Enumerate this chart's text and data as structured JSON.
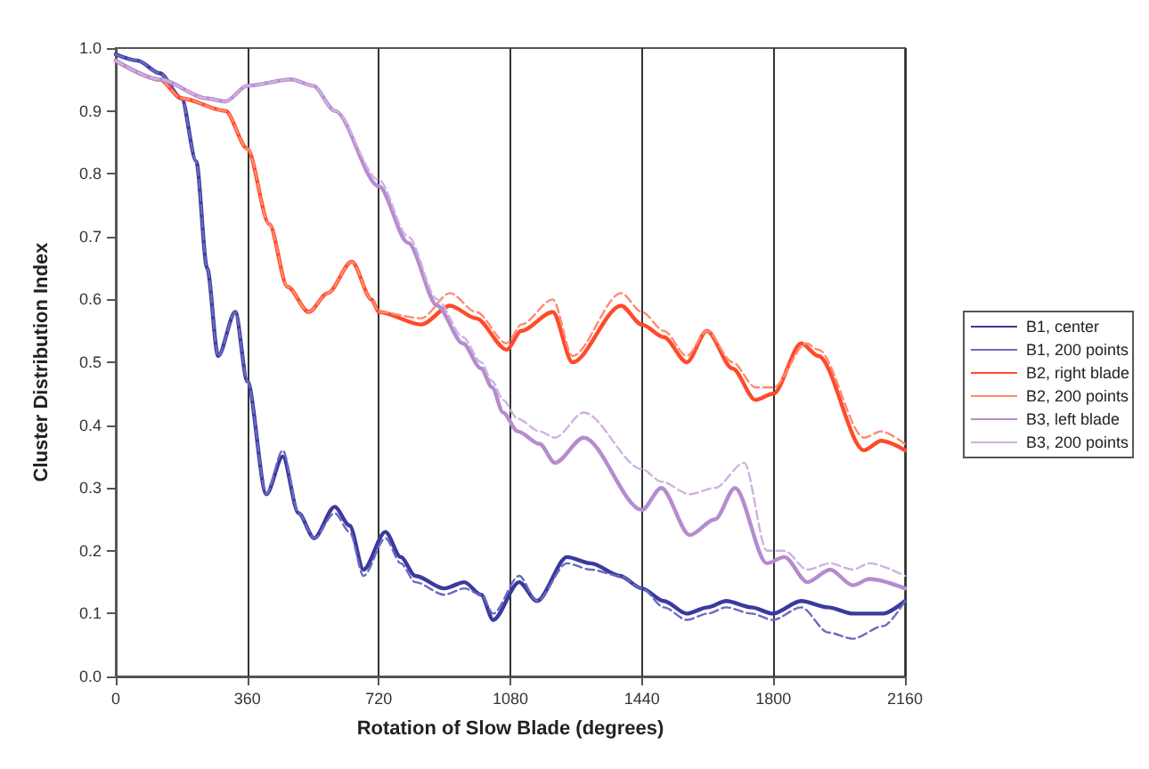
{
  "chart_data": {
    "type": "line",
    "xlabel": "Rotation of Slow Blade (degrees)",
    "ylabel": "Cluster Distribution Index",
    "xlim": [
      0,
      2160
    ],
    "xticks": [
      0,
      360,
      720,
      1080,
      1440,
      1800,
      2160
    ],
    "ylim": [
      0,
      1
    ],
    "yticks": [
      {
        "value": 0,
        "label": "0.0"
      },
      {
        "value": 0.1,
        "label": "0.1"
      },
      {
        "value": 0.2,
        "label": "0.2"
      },
      {
        "value": 0.3,
        "label": "0.3"
      },
      {
        "value": 0.4,
        "label": "0.4"
      },
      {
        "value": 0.5,
        "label": "0.5"
      },
      {
        "value": 0.6,
        "label": "0.6"
      },
      {
        "value": 0.7,
        "label": "0.7"
      },
      {
        "value": 0.8,
        "label": "0.8"
      },
      {
        "value": 0.9,
        "label": "0.9"
      },
      {
        "value": 1,
        "label": "1.0"
      }
    ],
    "grid": "x",
    "legend": "right",
    "marker": "none",
    "series": [
      {
        "name": "B1, center",
        "color": "#3a3a9e",
        "line_style": "solid",
        "x": [
          0,
          60,
          120,
          180,
          220,
          250,
          280,
          327,
          360,
          412,
          457,
          500,
          543,
          599,
          640,
          678,
          738,
          780,
          820,
          899,
          954,
          1000,
          1033,
          1104,
          1153,
          1235,
          1300,
          1380,
          1440,
          1500,
          1563,
          1620,
          1671,
          1740,
          1798,
          1876,
          1950,
          2017,
          2100,
          2160
        ],
        "values": [
          0.99,
          0.98,
          0.96,
          0.92,
          0.82,
          0.65,
          0.51,
          0.58,
          0.47,
          0.29,
          0.35,
          0.26,
          0.22,
          0.27,
          0.24,
          0.17,
          0.23,
          0.19,
          0.16,
          0.14,
          0.15,
          0.13,
          0.09,
          0.15,
          0.12,
          0.19,
          0.18,
          0.16,
          0.14,
          0.12,
          0.1,
          0.11,
          0.12,
          0.11,
          0.1,
          0.12,
          0.11,
          0.1,
          0.1,
          0.12
        ]
      },
      {
        "name": "B1, 200 points",
        "color": "#6a6ac0",
        "line_style": "dashed",
        "x": [
          0,
          60,
          120,
          180,
          220,
          250,
          280,
          327,
          360,
          412,
          457,
          500,
          543,
          599,
          640,
          678,
          738,
          780,
          820,
          899,
          954,
          1000,
          1033,
          1104,
          1153,
          1235,
          1300,
          1380,
          1440,
          1500,
          1563,
          1620,
          1671,
          1740,
          1798,
          1876,
          1950,
          2017,
          2100,
          2160
        ],
        "values": [
          0.99,
          0.98,
          0.96,
          0.92,
          0.82,
          0.65,
          0.51,
          0.58,
          0.47,
          0.29,
          0.36,
          0.26,
          0.22,
          0.26,
          0.23,
          0.16,
          0.22,
          0.18,
          0.15,
          0.13,
          0.14,
          0.13,
          0.1,
          0.16,
          0.12,
          0.18,
          0.17,
          0.16,
          0.14,
          0.11,
          0.09,
          0.1,
          0.11,
          0.1,
          0.09,
          0.11,
          0.07,
          0.06,
          0.08,
          0.12
        ]
      },
      {
        "name": "B2, right blade",
        "color": "#ff4a2a",
        "line_style": "solid",
        "x": [
          0,
          120,
          180,
          300,
          360,
          420,
          470,
          528,
          580,
          646,
          700,
          720,
          836,
          915,
          986,
          1070,
          1110,
          1196,
          1250,
          1383,
          1440,
          1500,
          1563,
          1618,
          1688,
          1751,
          1800,
          1876,
          1923,
          2048,
          2095,
          2160
        ],
        "values": [
          0.98,
          0.95,
          0.92,
          0.9,
          0.84,
          0.72,
          0.62,
          0.58,
          0.61,
          0.66,
          0.6,
          0.58,
          0.56,
          0.59,
          0.57,
          0.52,
          0.55,
          0.58,
          0.5,
          0.59,
          0.56,
          0.54,
          0.5,
          0.55,
          0.49,
          0.44,
          0.45,
          0.53,
          0.51,
          0.36,
          0.375,
          0.36
        ]
      },
      {
        "name": "B2, 200 points",
        "color": "#ff8a70",
        "line_style": "dashed",
        "x": [
          0,
          120,
          180,
          300,
          360,
          420,
          470,
          528,
          580,
          646,
          700,
          720,
          836,
          915,
          986,
          1070,
          1110,
          1196,
          1250,
          1383,
          1440,
          1500,
          1563,
          1618,
          1688,
          1751,
          1800,
          1890,
          1923,
          2048,
          2095,
          2160
        ],
        "values": [
          0.98,
          0.95,
          0.92,
          0.9,
          0.84,
          0.72,
          0.62,
          0.58,
          0.61,
          0.66,
          0.6,
          0.58,
          0.57,
          0.61,
          0.58,
          0.53,
          0.56,
          0.6,
          0.51,
          0.61,
          0.58,
          0.55,
          0.51,
          0.55,
          0.5,
          0.46,
          0.46,
          0.53,
          0.52,
          0.38,
          0.39,
          0.37
        ]
      },
      {
        "name": "B3, left blade",
        "color": "#b58ccf",
        "line_style": "solid",
        "x": [
          0,
          120,
          250,
          300,
          360,
          480,
          540,
          600,
          720,
          800,
          880,
          950,
          1000,
          1030,
          1060,
          1100,
          1160,
          1202,
          1281,
          1440,
          1493,
          1571,
          1640,
          1695,
          1782,
          1830,
          1893,
          1955,
          2017,
          2063,
          2160
        ],
        "values": [
          0.98,
          0.95,
          0.92,
          0.915,
          0.94,
          0.95,
          0.94,
          0.9,
          0.78,
          0.69,
          0.59,
          0.53,
          0.49,
          0.46,
          0.42,
          0.39,
          0.37,
          0.34,
          0.38,
          0.265,
          0.3,
          0.225,
          0.25,
          0.3,
          0.18,
          0.19,
          0.15,
          0.17,
          0.145,
          0.155,
          0.14
        ]
      },
      {
        "name": "B3, 200 points",
        "color": "#cfb2e0",
        "line_style": "dashed",
        "x": [
          0,
          120,
          250,
          300,
          360,
          480,
          540,
          600,
          720,
          800,
          880,
          950,
          1000,
          1030,
          1060,
          1100,
          1160,
          1202,
          1281,
          1440,
          1493,
          1571,
          1640,
          1720,
          1782,
          1830,
          1893,
          1955,
          2017,
          2063,
          2160
        ],
        "values": [
          0.98,
          0.95,
          0.92,
          0.915,
          0.94,
          0.95,
          0.94,
          0.9,
          0.79,
          0.7,
          0.6,
          0.54,
          0.5,
          0.47,
          0.44,
          0.41,
          0.39,
          0.38,
          0.42,
          0.33,
          0.31,
          0.29,
          0.3,
          0.34,
          0.2,
          0.2,
          0.17,
          0.18,
          0.17,
          0.18,
          0.16
        ]
      }
    ]
  }
}
